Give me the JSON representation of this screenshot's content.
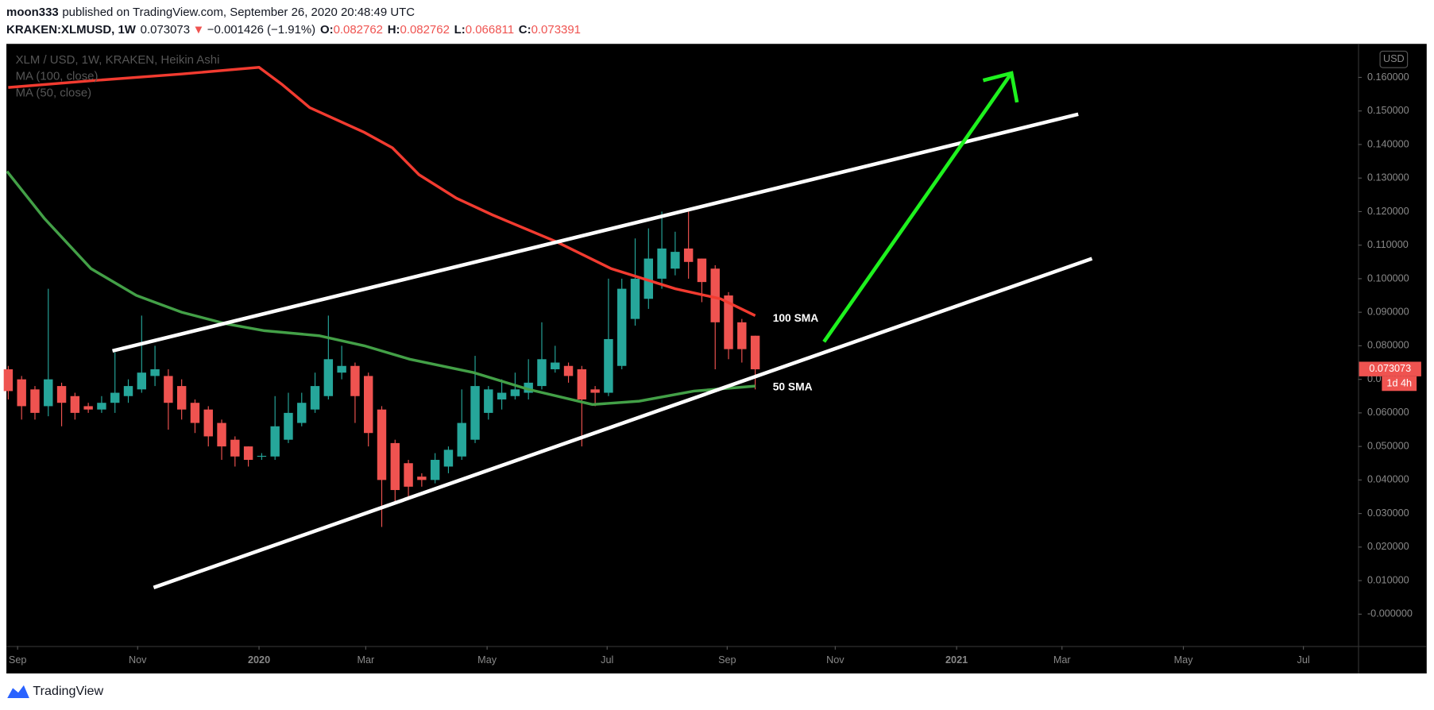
{
  "header": {
    "publisher": "moon333",
    "published": "published on TradingView.com, September 26, 2020 20:48:49 UTC",
    "symbol": "KRAKEN:XLMUSD, 1W",
    "price": "0.073073",
    "arrow": "▼",
    "change": "−0.001426 (−1.91%)",
    "o_label": "O:",
    "o": "0.082762",
    "h_label": "H:",
    "h": "0.082762",
    "l_label": "L:",
    "l": "0.066811",
    "c_label": "C:",
    "c": "0.073391"
  },
  "chart_data": {
    "type": "candlestick",
    "title": "XLM / USD, 1W, KRAKEN, Heikin Ashi",
    "up_color": "#26a69a",
    "down_color": "#ef5350",
    "x": [
      0,
      1,
      2,
      3,
      4,
      5,
      6,
      7,
      8,
      9,
      10,
      11,
      12,
      13,
      14,
      15,
      16,
      17,
      18,
      19,
      20,
      21,
      22,
      23,
      24,
      25,
      26,
      27,
      28,
      29,
      30,
      31,
      32,
      33,
      34,
      35,
      36,
      37,
      38,
      39,
      40,
      41,
      42,
      43,
      44,
      45,
      46,
      47,
      48,
      49,
      50,
      51,
      52,
      53,
      54,
      55,
      56
    ],
    "open": [
      0.073,
      0.07,
      0.067,
      0.062,
      0.068,
      0.065,
      0.062,
      0.061,
      0.063,
      0.065,
      0.067,
      0.071,
      0.071,
      0.068,
      0.063,
      0.061,
      0.057,
      0.052,
      0.05,
      0.047,
      0.047,
      0.052,
      0.057,
      0.061,
      0.065,
      0.072,
      0.074,
      0.071,
      0.061,
      0.051,
      0.045,
      0.041,
      0.04,
      0.044,
      0.047,
      0.052,
      0.06,
      0.064,
      0.065,
      0.066,
      0.068,
      0.073,
      0.074,
      0.073,
      0.067,
      0.066,
      0.074,
      0.088,
      0.094,
      0.1,
      0.103,
      0.109,
      0.106,
      0.103,
      0.095,
      0.087,
      0.083
    ],
    "high": [
      0.074,
      0.071,
      0.068,
      0.097,
      0.069,
      0.066,
      0.063,
      0.065,
      0.078,
      0.07,
      0.089,
      0.08,
      0.073,
      0.07,
      0.064,
      0.062,
      0.058,
      0.053,
      0.05,
      0.048,
      0.065,
      0.066,
      0.066,
      0.072,
      0.089,
      0.08,
      0.075,
      0.072,
      0.062,
      0.052,
      0.046,
      0.042,
      0.048,
      0.05,
      0.067,
      0.077,
      0.068,
      0.07,
      0.072,
      0.076,
      0.087,
      0.08,
      0.075,
      0.074,
      0.068,
      0.1,
      0.1,
      0.112,
      0.115,
      0.12,
      0.114,
      0.12,
      0.106,
      0.104,
      0.096,
      0.088,
      0.083
    ],
    "low": [
      0.064,
      0.058,
      0.058,
      0.059,
      0.056,
      0.058,
      0.06,
      0.06,
      0.06,
      0.063,
      0.066,
      0.068,
      0.055,
      0.058,
      0.054,
      0.05,
      0.046,
      0.044,
      0.044,
      0.046,
      0.046,
      0.051,
      0.056,
      0.06,
      0.064,
      0.07,
      0.057,
      0.05,
      0.026,
      0.033,
      0.035,
      0.038,
      0.039,
      0.042,
      0.046,
      0.051,
      0.058,
      0.061,
      0.064,
      0.064,
      0.067,
      0.072,
      0.069,
      0.05,
      0.062,
      0.065,
      0.073,
      0.086,
      0.091,
      0.097,
      0.101,
      0.1,
      0.093,
      0.073,
      0.076,
      0.075,
      0.067
    ],
    "close": [
      0.0665,
      0.062,
      0.06,
      0.07,
      0.063,
      0.06,
      0.061,
      0.063,
      0.066,
      0.068,
      0.072,
      0.073,
      0.063,
      0.061,
      0.057,
      0.053,
      0.05,
      0.047,
      0.046,
      0.0472,
      0.056,
      0.06,
      0.063,
      0.068,
      0.076,
      0.074,
      0.065,
      0.054,
      0.04,
      0.037,
      0.038,
      0.04,
      0.046,
      0.049,
      0.057,
      0.068,
      0.067,
      0.066,
      0.067,
      0.069,
      0.076,
      0.075,
      0.071,
      0.064,
      0.066,
      0.082,
      0.097,
      0.1,
      0.106,
      0.109,
      0.108,
      0.105,
      0.099,
      0.087,
      0.079,
      0.079,
      0.073
    ],
    "series": [
      {
        "name": "MA (100, close)",
        "color": "#f23b30",
        "x": [
          0,
          6.2,
          13,
          18.8,
          20.5,
          22.6,
          26.7,
          28.8,
          30.8,
          33.6,
          36.3,
          41.1,
          45.2,
          50,
          53.4,
          56
        ],
        "values": [
          0.157,
          0.159,
          0.161,
          0.163,
          0.158,
          0.151,
          0.1436,
          0.139,
          0.131,
          0.124,
          0.119,
          0.111,
          0.103,
          0.097,
          0.094,
          0.089
        ]
      },
      {
        "name": "MA (50, close)",
        "color": "#43a047",
        "x": [
          -0.1,
          2.7,
          6.2,
          9.6,
          13,
          16.4,
          19.2,
          23.3,
          26.7,
          30.1,
          34.9,
          39,
          43.8,
          47.3,
          51.4,
          56
        ],
        "values": [
          0.132,
          0.118,
          0.103,
          0.095,
          0.09,
          0.0865,
          0.0845,
          0.083,
          0.08,
          0.076,
          0.072,
          0.067,
          0.0625,
          0.0635,
          0.0665,
          0.068
        ]
      }
    ],
    "annotations": [
      "100 SMA",
      "50 SMA"
    ],
    "xlim": [
      -0.14,
      101.2
    ],
    "xticks": [
      {
        "value": 0.7,
        "label": "Sep"
      },
      {
        "value": 9.7,
        "label": "Nov"
      },
      {
        "value": 18.8,
        "label": "2020"
      },
      {
        "value": 26.8,
        "label": "Mar"
      },
      {
        "value": 35.9,
        "label": "May"
      },
      {
        "value": 44.9,
        "label": "Jul"
      },
      {
        "value": 53.9,
        "label": "Sep"
      },
      {
        "value": 62,
        "label": "Nov"
      },
      {
        "value": 71.1,
        "label": "2021"
      },
      {
        "value": 79,
        "label": "Mar"
      },
      {
        "value": 88.1,
        "label": "May"
      },
      {
        "value": 97.1,
        "label": "Jul"
      }
    ],
    "ylim": [
      -0.0095,
      0.17
    ],
    "yticks": [
      {
        "value": 0.16,
        "label": "0.160000"
      },
      {
        "value": 0.15,
        "label": "0.150000"
      },
      {
        "value": 0.14,
        "label": "0.140000"
      },
      {
        "value": 0.13,
        "label": "0.130000"
      },
      {
        "value": 0.12,
        "label": "0.120000"
      },
      {
        "value": 0.11,
        "label": "0.110000"
      },
      {
        "value": 0.1,
        "label": "0.100000"
      },
      {
        "value": 0.09,
        "label": "0.090000"
      },
      {
        "value": 0.08,
        "label": "0.080000"
      },
      {
        "value": 0.07,
        "label": "0.070000"
      },
      {
        "value": 0.06,
        "label": "0.060000"
      },
      {
        "value": 0.05,
        "label": "0.050000"
      },
      {
        "value": 0.04,
        "label": "0.040000"
      },
      {
        "value": 0.03,
        "label": "0.030000"
      },
      {
        "value": 0.02,
        "label": "0.020000"
      },
      {
        "value": 0.01,
        "label": "0.010000"
      },
      {
        "value": 0,
        "label": "-0.000000"
      }
    ],
    "currency": "USD",
    "last_price": 0.073073,
    "countdown": "1d 4h"
  },
  "footer": {
    "brand": "TradingView"
  }
}
